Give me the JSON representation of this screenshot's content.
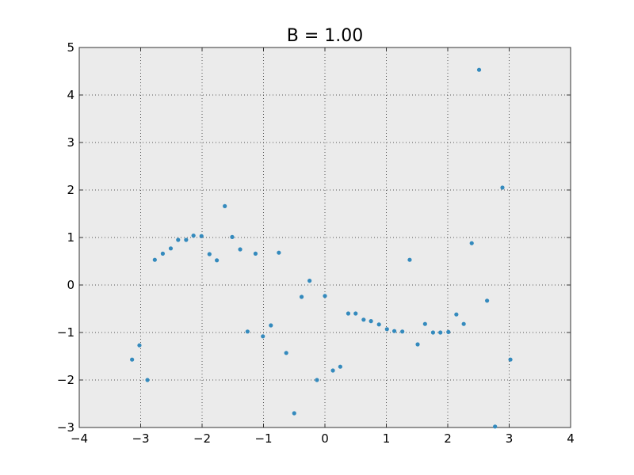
{
  "chart_data": {
    "type": "scatter",
    "title": "B = 1.00",
    "xlabel": "",
    "ylabel": "",
    "xlim": [
      -4,
      4
    ],
    "ylim": [
      -3,
      5
    ],
    "x_ticks": [
      -4,
      -3,
      -2,
      -1,
      0,
      1,
      2,
      3,
      4
    ],
    "y_ticks": [
      -3,
      -2,
      -1,
      0,
      1,
      2,
      3,
      4,
      5
    ],
    "x_tick_labels": [
      "−4",
      "−3",
      "−2",
      "−1",
      "0",
      "1",
      "2",
      "3",
      "4"
    ],
    "y_tick_labels": [
      "−3",
      "−2",
      "−1",
      "0",
      "1",
      "2",
      "3",
      "4",
      "5"
    ],
    "grid": true,
    "colors": {
      "plot_background": "#ebebeb",
      "point": "#348abd",
      "grid": "#555555",
      "axes": "#333333"
    },
    "series": [
      {
        "points": [
          [
            -3.14,
            -1.57
          ],
          [
            -3.02,
            -1.27
          ],
          [
            -2.89,
            -2.0
          ],
          [
            -2.77,
            0.53
          ],
          [
            -2.64,
            0.66
          ],
          [
            -2.51,
            0.77
          ],
          [
            -2.39,
            0.95
          ],
          [
            -2.26,
            0.95
          ],
          [
            -2.14,
            1.04
          ],
          [
            -2.01,
            1.03
          ],
          [
            -1.88,
            0.65
          ],
          [
            -1.76,
            0.52
          ],
          [
            -1.63,
            1.66
          ],
          [
            -1.51,
            1.01
          ],
          [
            -1.38,
            0.75
          ],
          [
            -1.26,
            -0.98
          ],
          [
            -1.13,
            0.66
          ],
          [
            -1.01,
            -1.08
          ],
          [
            -0.88,
            -0.85
          ],
          [
            -0.75,
            0.68
          ],
          [
            -0.63,
            -1.43
          ],
          [
            -0.5,
            -2.7
          ],
          [
            -0.38,
            -0.25
          ],
          [
            -0.25,
            0.09
          ],
          [
            -0.13,
            -2.0
          ],
          [
            0.0,
            -0.23
          ],
          [
            0.13,
            -1.8
          ],
          [
            0.25,
            -1.72
          ],
          [
            0.38,
            -0.6
          ],
          [
            0.5,
            -0.6
          ],
          [
            0.63,
            -0.73
          ],
          [
            0.75,
            -0.76
          ],
          [
            0.88,
            -0.83
          ],
          [
            1.01,
            -0.93
          ],
          [
            1.13,
            -0.97
          ],
          [
            1.26,
            -0.98
          ],
          [
            1.38,
            0.53
          ],
          [
            1.51,
            -1.25
          ],
          [
            1.63,
            -0.82
          ],
          [
            1.76,
            -1.0
          ],
          [
            1.88,
            -1.0
          ],
          [
            2.01,
            -0.99
          ],
          [
            2.14,
            -0.62
          ],
          [
            2.26,
            -0.82
          ],
          [
            2.39,
            0.88
          ],
          [
            2.51,
            4.53
          ],
          [
            2.64,
            -0.33
          ],
          [
            2.77,
            -2.98
          ],
          [
            2.89,
            2.05
          ],
          [
            3.02,
            -1.57
          ]
        ]
      }
    ]
  }
}
